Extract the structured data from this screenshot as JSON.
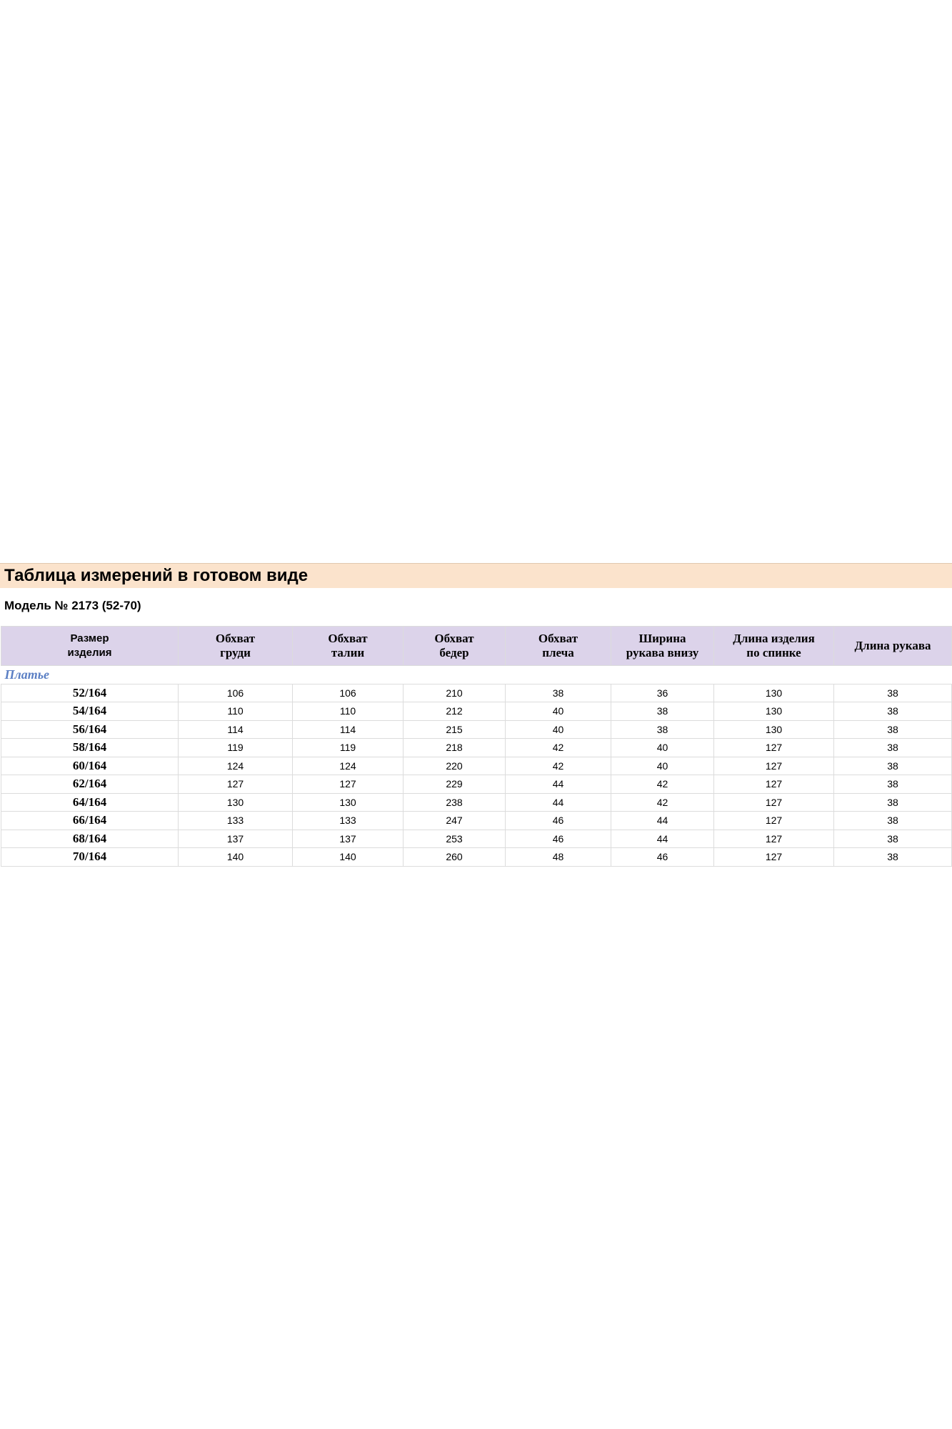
{
  "header": {
    "title": "Таблица измерений в готовом виде",
    "model": "Модель № 2173 (52-70)"
  },
  "table": {
    "columns": [
      "Размер\nизделия",
      "Обхват\nгруди",
      "Обхват\nталии",
      "Обхват\nбедер",
      "Обхват\nплеча",
      "Ширина\nрукава внизу",
      "Длина изделия\nпо спинке",
      "Длина рукава"
    ],
    "section": "Платье",
    "rows": [
      [
        "52/164",
        106,
        106,
        210,
        38,
        36,
        130,
        38
      ],
      [
        "54/164",
        110,
        110,
        212,
        40,
        38,
        130,
        38
      ],
      [
        "56/164",
        114,
        114,
        215,
        40,
        38,
        130,
        38
      ],
      [
        "58/164",
        119,
        119,
        218,
        42,
        40,
        127,
        38
      ],
      [
        "60/164",
        124,
        124,
        220,
        42,
        40,
        127,
        38
      ],
      [
        "62/164",
        127,
        127,
        229,
        44,
        42,
        127,
        38
      ],
      [
        "64/164",
        130,
        130,
        238,
        44,
        42,
        127,
        38
      ],
      [
        "66/164",
        133,
        133,
        247,
        46,
        44,
        127,
        38
      ],
      [
        "68/164",
        137,
        137,
        253,
        46,
        44,
        127,
        38
      ],
      [
        "70/164",
        140,
        140,
        260,
        48,
        46,
        127,
        38
      ]
    ]
  }
}
